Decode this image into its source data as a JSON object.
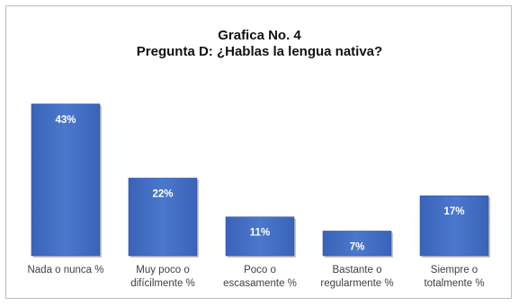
{
  "chart_data": {
    "type": "bar",
    "title": "Grafica No. 4",
    "subtitle": "Pregunta D: ¿Hablas la lengua nativa?",
    "categories": [
      [
        "Nada o nunca %"
      ],
      [
        "Muy poco o",
        "difícilmente %"
      ],
      [
        "Poco o",
        "escasamente %"
      ],
      [
        "Bastante o",
        "regularmente %"
      ],
      [
        "Siempre o",
        "totalmente %"
      ]
    ],
    "values": [
      43,
      22,
      11,
      7,
      17
    ],
    "data_labels": [
      "43%",
      "22%",
      "11%",
      "7%",
      "17%"
    ],
    "ylim": [
      0,
      45
    ],
    "grid": false,
    "bar_color": "#4472c4"
  }
}
